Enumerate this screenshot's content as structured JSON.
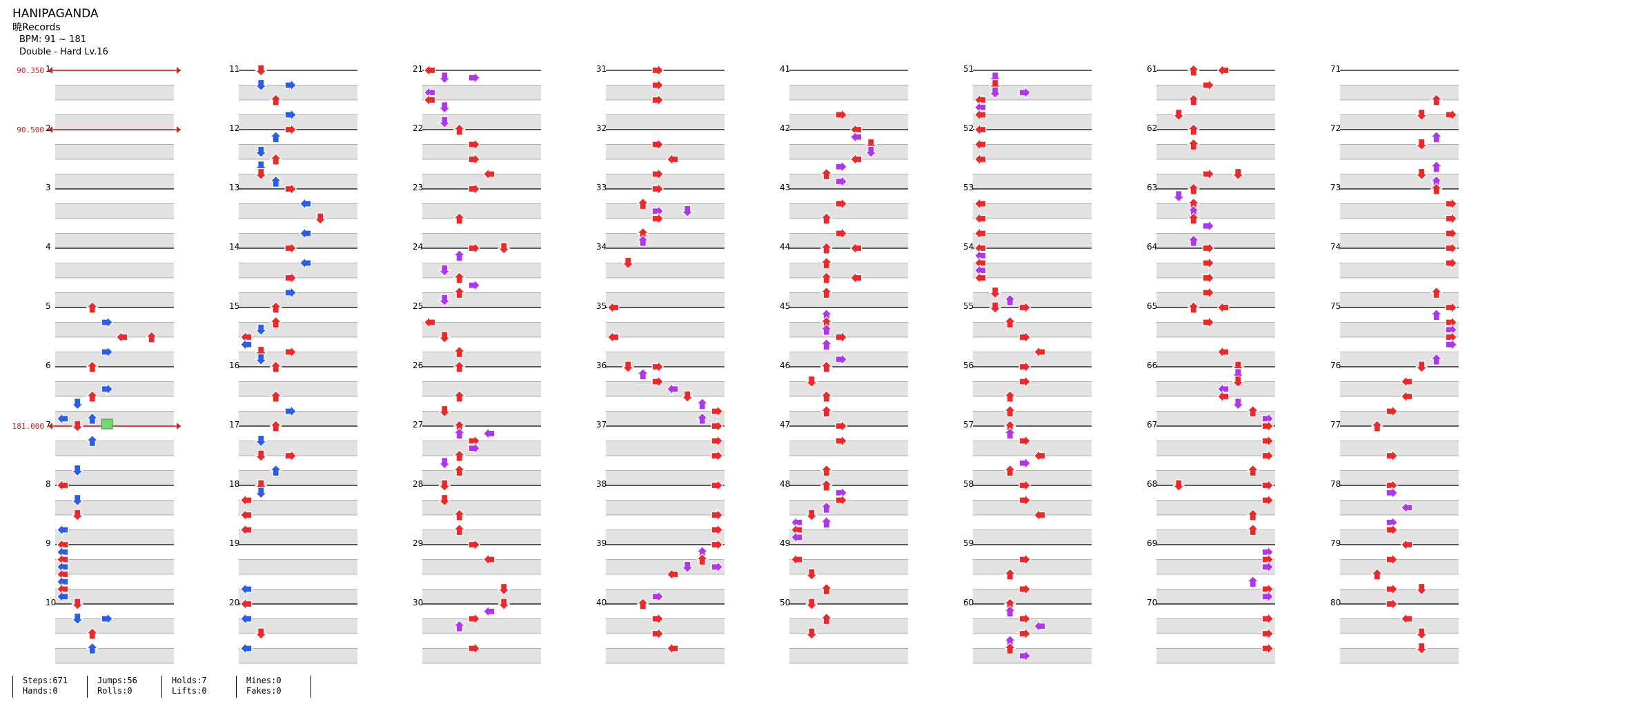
{
  "song": {
    "title": "HANIPAGANDA",
    "artist": "暁Records",
    "bpm": "BPM: 91 ~ 181",
    "difficulty": "Double - Hard  Lv.16"
  },
  "chart_data": {
    "type": "step-chart",
    "measures_per_column": 10,
    "measure_count": 80,
    "bpm_changes": [
      {
        "measure": 1,
        "beat": 0,
        "bpm": "90.350"
      },
      {
        "measure": 2,
        "beat": 0,
        "bpm": "90.500"
      },
      {
        "measure": 7,
        "beat": 0,
        "bpm": "181.000"
      }
    ],
    "colors": {
      "red": "#ee2828",
      "blue": "#2a5ee8",
      "purple": "#b035f0",
      "hold": "#6fd86f",
      "bpm_line": "#d42020"
    }
  },
  "stats": [
    {
      "lines": [
        "Steps:671",
        "Hands:0"
      ]
    },
    {
      "lines": [
        "Jumps:56",
        "Rolls:0"
      ]
    },
    {
      "lines": [
        "Holds:7",
        "Lifts:0"
      ]
    },
    {
      "lines": [
        "Mines:0",
        "Fakes:0"
      ]
    }
  ]
}
